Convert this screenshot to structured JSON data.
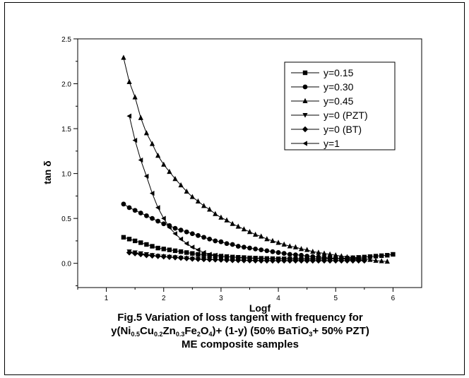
{
  "chart_data": {
    "type": "line",
    "title": "",
    "xlabel": "Logf",
    "ylabel": "tan δ",
    "xlim": [
      0.5,
      6.5
    ],
    "ylim": [
      -0.27,
      2.5
    ],
    "x_ticks": [
      "1",
      "2",
      "3",
      "4",
      "5",
      "6"
    ],
    "y_ticks": [
      "0.0",
      "0.5",
      "1.0",
      "1.5",
      "2.0",
      "2.5"
    ],
    "legend_position": "top-right",
    "series": [
      {
        "name": "y=0.15",
        "marker": "square",
        "points": [
          [
            1.3,
            0.29
          ],
          [
            1.4,
            0.27
          ],
          [
            1.5,
            0.25
          ],
          [
            1.6,
            0.23
          ],
          [
            1.7,
            0.21
          ],
          [
            1.8,
            0.19
          ],
          [
            1.9,
            0.17
          ],
          [
            2.0,
            0.16
          ],
          [
            2.1,
            0.15
          ],
          [
            2.2,
            0.14
          ],
          [
            2.3,
            0.13
          ],
          [
            2.4,
            0.12
          ],
          [
            2.5,
            0.11
          ],
          [
            2.6,
            0.1
          ],
          [
            2.7,
            0.095
          ],
          [
            2.8,
            0.09
          ],
          [
            2.9,
            0.085
          ],
          [
            3.0,
            0.08
          ],
          [
            3.1,
            0.075
          ],
          [
            3.2,
            0.07
          ],
          [
            3.3,
            0.067
          ],
          [
            3.4,
            0.064
          ],
          [
            3.5,
            0.06
          ],
          [
            3.6,
            0.058
          ],
          [
            3.7,
            0.056
          ],
          [
            3.8,
            0.054
          ],
          [
            3.9,
            0.052
          ],
          [
            4.0,
            0.05
          ],
          [
            4.1,
            0.05
          ],
          [
            4.2,
            0.048
          ],
          [
            4.3,
            0.047
          ],
          [
            4.4,
            0.046
          ],
          [
            4.5,
            0.046
          ],
          [
            4.6,
            0.046
          ],
          [
            4.7,
            0.047
          ],
          [
            4.8,
            0.048
          ],
          [
            4.9,
            0.05
          ],
          [
            5.0,
            0.052
          ],
          [
            5.1,
            0.055
          ],
          [
            5.2,
            0.058
          ],
          [
            5.3,
            0.062
          ],
          [
            5.4,
            0.066
          ],
          [
            5.5,
            0.07
          ],
          [
            5.6,
            0.075
          ],
          [
            5.7,
            0.08
          ],
          [
            5.8,
            0.085
          ],
          [
            5.9,
            0.09
          ],
          [
            6.0,
            0.1
          ]
        ]
      },
      {
        "name": "y=0.30",
        "marker": "circle",
        "points": [
          [
            1.3,
            0.66
          ],
          [
            1.4,
            0.62
          ],
          [
            1.5,
            0.59
          ],
          [
            1.6,
            0.56
          ],
          [
            1.7,
            0.53
          ],
          [
            1.8,
            0.5
          ],
          [
            1.9,
            0.47
          ],
          [
            2.0,
            0.44
          ],
          [
            2.1,
            0.42
          ],
          [
            2.2,
            0.39
          ],
          [
            2.3,
            0.37
          ],
          [
            2.4,
            0.35
          ],
          [
            2.5,
            0.33
          ],
          [
            2.6,
            0.31
          ],
          [
            2.7,
            0.29
          ],
          [
            2.8,
            0.27
          ],
          [
            2.9,
            0.25
          ],
          [
            3.0,
            0.24
          ],
          [
            3.1,
            0.22
          ],
          [
            3.2,
            0.21
          ],
          [
            3.3,
            0.19
          ],
          [
            3.4,
            0.18
          ],
          [
            3.5,
            0.17
          ],
          [
            3.6,
            0.16
          ],
          [
            3.7,
            0.15
          ],
          [
            3.8,
            0.14
          ],
          [
            3.9,
            0.13
          ],
          [
            4.0,
            0.12
          ],
          [
            4.1,
            0.11
          ],
          [
            4.2,
            0.1
          ],
          [
            4.3,
            0.095
          ],
          [
            4.4,
            0.09
          ],
          [
            4.5,
            0.08
          ],
          [
            4.6,
            0.075
          ],
          [
            4.7,
            0.07
          ],
          [
            4.8,
            0.065
          ],
          [
            4.9,
            0.06
          ],
          [
            5.0,
            0.055
          ],
          [
            5.1,
            0.05
          ],
          [
            5.2,
            0.045
          ],
          [
            5.3,
            0.04
          ],
          [
            5.4,
            0.04
          ],
          [
            5.5,
            0.035
          ]
        ]
      },
      {
        "name": "y=0.45",
        "marker": "triangle-up",
        "points": [
          [
            1.3,
            2.29
          ],
          [
            1.4,
            2.02
          ],
          [
            1.5,
            1.85
          ],
          [
            1.6,
            1.62
          ],
          [
            1.7,
            1.45
          ],
          [
            1.8,
            1.33
          ],
          [
            1.9,
            1.2
          ],
          [
            2.0,
            1.1
          ],
          [
            2.1,
            1.02
          ],
          [
            2.2,
            0.94
          ],
          [
            2.3,
            0.87
          ],
          [
            2.4,
            0.8
          ],
          [
            2.5,
            0.74
          ],
          [
            2.6,
            0.69
          ],
          [
            2.7,
            0.64
          ],
          [
            2.8,
            0.6
          ],
          [
            2.9,
            0.55
          ],
          [
            3.0,
            0.51
          ],
          [
            3.1,
            0.48
          ],
          [
            3.2,
            0.44
          ],
          [
            3.3,
            0.41
          ],
          [
            3.4,
            0.38
          ],
          [
            3.5,
            0.35
          ],
          [
            3.6,
            0.32
          ],
          [
            3.7,
            0.3
          ],
          [
            3.8,
            0.27
          ],
          [
            3.9,
            0.25
          ],
          [
            4.0,
            0.23
          ],
          [
            4.1,
            0.21
          ],
          [
            4.2,
            0.19
          ],
          [
            4.3,
            0.18
          ],
          [
            4.4,
            0.16
          ],
          [
            4.5,
            0.15
          ],
          [
            4.6,
            0.13
          ],
          [
            4.7,
            0.12
          ],
          [
            4.8,
            0.11
          ],
          [
            4.9,
            0.1
          ],
          [
            5.0,
            0.09
          ],
          [
            5.1,
            0.08
          ],
          [
            5.2,
            0.07
          ],
          [
            5.3,
            0.06
          ],
          [
            5.4,
            0.055
          ],
          [
            5.5,
            0.05
          ],
          [
            5.6,
            0.04
          ],
          [
            5.7,
            0.03
          ],
          [
            5.8,
            0.025
          ],
          [
            5.9,
            0.02
          ]
        ]
      },
      {
        "name": "y=0 (PZT)",
        "marker": "triangle-down",
        "points": [
          [
            1.4,
            0.13
          ],
          [
            1.5,
            0.12
          ],
          [
            1.6,
            0.11
          ],
          [
            1.7,
            0.1
          ],
          [
            1.8,
            0.09
          ],
          [
            1.9,
            0.08
          ],
          [
            2.0,
            0.075
          ],
          [
            2.1,
            0.07
          ],
          [
            2.2,
            0.065
          ],
          [
            2.3,
            0.06
          ],
          [
            2.4,
            0.055
          ],
          [
            2.5,
            0.05
          ],
          [
            2.6,
            0.048
          ],
          [
            2.7,
            0.046
          ],
          [
            2.8,
            0.044
          ],
          [
            2.9,
            0.042
          ],
          [
            3.0,
            0.04
          ],
          [
            3.1,
            0.038
          ],
          [
            3.2,
            0.036
          ],
          [
            3.3,
            0.035
          ],
          [
            3.4,
            0.034
          ],
          [
            3.5,
            0.033
          ],
          [
            3.6,
            0.032
          ],
          [
            3.7,
            0.031
          ],
          [
            3.8,
            0.03
          ],
          [
            3.9,
            0.03
          ],
          [
            4.0,
            0.03
          ],
          [
            4.1,
            0.03
          ],
          [
            4.2,
            0.03
          ],
          [
            4.3,
            0.03
          ],
          [
            4.4,
            0.03
          ],
          [
            4.5,
            0.03
          ],
          [
            4.6,
            0.03
          ],
          [
            4.7,
            0.03
          ],
          [
            4.8,
            0.03
          ],
          [
            4.9,
            0.03
          ],
          [
            5.0,
            0.03
          ],
          [
            5.1,
            0.03
          ],
          [
            5.2,
            0.03
          ],
          [
            5.3,
            0.03
          ],
          [
            5.4,
            0.03
          ],
          [
            5.5,
            0.03
          ]
        ]
      },
      {
        "name": "y=0 (BT)",
        "marker": "diamond",
        "points": [
          [
            1.4,
            0.12
          ],
          [
            1.5,
            0.11
          ],
          [
            1.6,
            0.1
          ],
          [
            1.7,
            0.09
          ],
          [
            1.8,
            0.085
          ],
          [
            1.9,
            0.08
          ],
          [
            2.0,
            0.075
          ],
          [
            2.1,
            0.07
          ],
          [
            2.2,
            0.065
          ],
          [
            2.3,
            0.06
          ],
          [
            2.4,
            0.055
          ],
          [
            2.5,
            0.05
          ],
          [
            2.6,
            0.047
          ],
          [
            2.7,
            0.045
          ],
          [
            2.8,
            0.043
          ],
          [
            2.9,
            0.041
          ],
          [
            3.0,
            0.039
          ],
          [
            3.1,
            0.037
          ],
          [
            3.2,
            0.035
          ],
          [
            3.3,
            0.034
          ],
          [
            3.4,
            0.033
          ],
          [
            3.5,
            0.032
          ],
          [
            3.6,
            0.031
          ],
          [
            3.7,
            0.03
          ],
          [
            3.8,
            0.03
          ],
          [
            3.9,
            0.03
          ],
          [
            4.0,
            0.03
          ],
          [
            4.1,
            0.03
          ],
          [
            4.2,
            0.03
          ],
          [
            4.3,
            0.03
          ],
          [
            4.4,
            0.03
          ],
          [
            4.5,
            0.03
          ],
          [
            4.6,
            0.03
          ],
          [
            4.7,
            0.03
          ],
          [
            4.8,
            0.03
          ],
          [
            4.9,
            0.03
          ],
          [
            5.0,
            0.03
          ],
          [
            5.1,
            0.03
          ],
          [
            5.2,
            0.03
          ],
          [
            5.3,
            0.03
          ],
          [
            5.4,
            0.03
          ],
          [
            5.5,
            0.03
          ]
        ]
      },
      {
        "name": "y=1",
        "marker": "triangle-left",
        "points": [
          [
            1.4,
            1.64
          ],
          [
            1.5,
            1.37
          ],
          [
            1.6,
            1.15
          ],
          [
            1.7,
            0.97
          ],
          [
            1.8,
            0.78
          ],
          [
            1.9,
            0.62
          ],
          [
            2.0,
            0.5
          ],
          [
            2.1,
            0.4
          ],
          [
            2.2,
            0.33
          ],
          [
            2.3,
            0.27
          ],
          [
            2.4,
            0.22
          ],
          [
            2.5,
            0.18
          ],
          [
            2.6,
            0.15
          ],
          [
            2.7,
            0.12
          ],
          [
            2.8,
            0.1
          ],
          [
            2.9,
            0.09
          ],
          [
            3.0,
            0.08
          ],
          [
            3.1,
            0.075
          ],
          [
            3.2,
            0.07
          ],
          [
            3.3,
            0.065
          ],
          [
            3.4,
            0.06
          ],
          [
            3.5,
            0.06
          ],
          [
            3.6,
            0.055
          ],
          [
            3.7,
            0.055
          ],
          [
            3.8,
            0.05
          ],
          [
            3.9,
            0.05
          ],
          [
            4.0,
            0.05
          ],
          [
            4.1,
            0.05
          ],
          [
            4.2,
            0.05
          ],
          [
            4.3,
            0.05
          ],
          [
            4.4,
            0.05
          ],
          [
            4.5,
            0.05
          ],
          [
            4.6,
            0.05
          ],
          [
            4.7,
            0.05
          ],
          [
            4.8,
            0.05
          ],
          [
            4.9,
            0.05
          ],
          [
            5.0,
            0.05
          ],
          [
            5.1,
            0.05
          ],
          [
            5.2,
            0.05
          ],
          [
            5.3,
            0.05
          ],
          [
            5.4,
            0.05
          ],
          [
            5.5,
            0.05
          ]
        ]
      }
    ]
  },
  "caption": {
    "line1": "Fig.5 Variation of loss tangent with frequency for",
    "line2": {
      "p1": "y(Ni",
      "s1": "0.5",
      "p2": "Cu",
      "s2": "0.2",
      "p3": "Zn",
      "s3": "0.3",
      "p4": "Fe",
      "s4": "2",
      "p5": "O",
      "s5": "4",
      "p6": ")+ (1-y) (50% BaTiO",
      "s6": "3",
      "p7": "+ 50% PZT)"
    },
    "line3": "ME composite samples"
  }
}
